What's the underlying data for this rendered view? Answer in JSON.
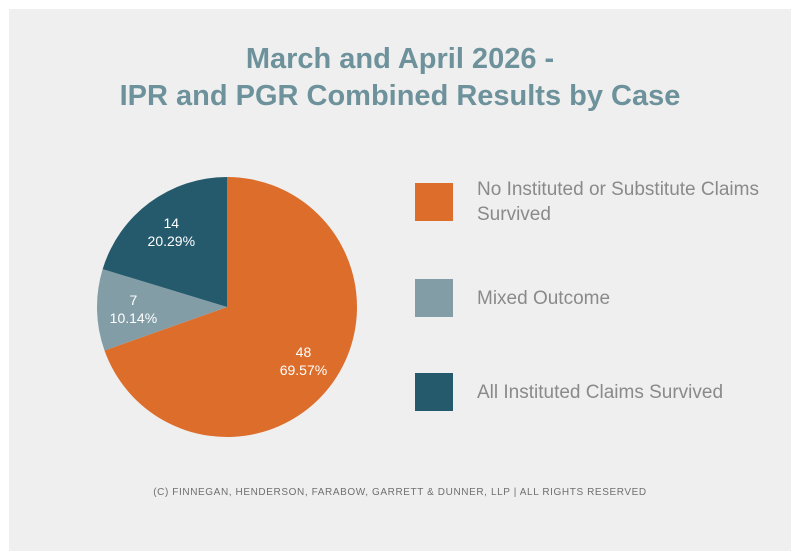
{
  "chart_data": {
    "type": "pie",
    "title_lines": [
      "March and April 2026 -",
      "IPR and PGR Combined Results by Case"
    ],
    "slices": [
      {
        "label": "No Instituted or Substitute Claims Survived",
        "value": 48,
        "percent": "69.57%",
        "color": "#dc6d2b"
      },
      {
        "label": "Mixed Outcome",
        "value": 7,
        "percent": "10.14%",
        "color": "#829da6"
      },
      {
        "label": "All Instituted Claims Survived",
        "value": 14,
        "percent": "20.29%",
        "color": "#255a6d"
      }
    ],
    "legend_placement": "right",
    "start_angle_deg": 0,
    "direction": "clockwise"
  },
  "footer": "(C) FINNEGAN, HENDERSON, FARABOW, GARRETT & DUNNER, LLP | ALL RIGHTS RESERVED"
}
